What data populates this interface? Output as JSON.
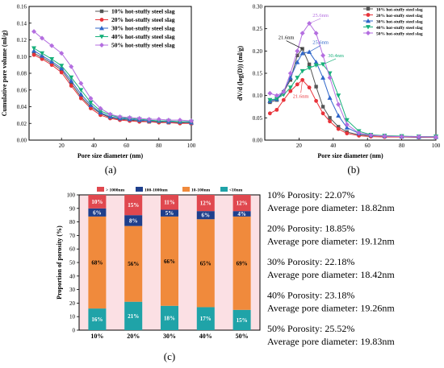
{
  "chart_data": [
    {
      "id": "a",
      "type": "line",
      "panel_label": "(a)",
      "xlabel": "Pore size diameter (nm)",
      "ylabel": "Cumulative pore volume (ml/g)",
      "xlim": [
        0,
        100
      ],
      "ylim": [
        0,
        0.16
      ],
      "xticks": [
        20,
        40,
        60,
        80,
        100
      ],
      "yticks": [
        0,
        0.02,
        0.04,
        0.06,
        0.08,
        0.1,
        0.12,
        0.14,
        0.16
      ],
      "ytick_labels": [
        "0.00",
        "0.02",
        "0.04",
        "0.06",
        "0.08",
        "0.10",
        "0.12",
        "0.14",
        "0.16"
      ],
      "legend_position": "top-right",
      "x": [
        3,
        8,
        14,
        20,
        26,
        32,
        38,
        44,
        50,
        56,
        62,
        68,
        74,
        80,
        86,
        93,
        100
      ],
      "series": [
        {
          "name": "10% hot-stuffy steel slag",
          "color": "#555555",
          "marker": "square",
          "values": [
            0.104,
            0.099,
            0.092,
            0.084,
            0.068,
            0.052,
            0.04,
            0.032,
            0.027,
            0.025,
            0.024,
            0.023,
            0.022,
            0.022,
            0.021,
            0.021,
            0.02
          ]
        },
        {
          "name": "20% hot-stuffy steel slag",
          "color": "#e8333a",
          "marker": "circle",
          "values": [
            0.102,
            0.097,
            0.09,
            0.081,
            0.065,
            0.05,
            0.038,
            0.03,
            0.026,
            0.024,
            0.023,
            0.022,
            0.022,
            0.021,
            0.021,
            0.02,
            0.02
          ]
        },
        {
          "name": "30% hot-stuffy steel slag",
          "color": "#2f66c9",
          "marker": "triangle-up",
          "values": [
            0.107,
            0.101,
            0.094,
            0.086,
            0.071,
            0.055,
            0.042,
            0.033,
            0.028,
            0.026,
            0.025,
            0.024,
            0.023,
            0.023,
            0.022,
            0.022,
            0.021
          ]
        },
        {
          "name": "40% hot-stuffy steel slag",
          "color": "#17b07a",
          "marker": "triangle-down",
          "values": [
            0.11,
            0.104,
            0.097,
            0.089,
            0.075,
            0.06,
            0.045,
            0.035,
            0.03,
            0.027,
            0.026,
            0.025,
            0.024,
            0.023,
            0.023,
            0.022,
            0.022
          ]
        },
        {
          "name": "50% hot-stuffy steel slag",
          "color": "#b46ee0",
          "marker": "diamond",
          "values": [
            0.13,
            0.122,
            0.113,
            0.104,
            0.088,
            0.068,
            0.05,
            0.038,
            0.031,
            0.028,
            0.027,
            0.026,
            0.025,
            0.025,
            0.024,
            0.024,
            0.023
          ]
        }
      ]
    },
    {
      "id": "b",
      "type": "line",
      "panel_label": "(b)",
      "xlabel": "Pore size diameter (nm)",
      "ylabel": "dV/d (log(D)) (ml/g)",
      "xlim": [
        0,
        100
      ],
      "ylim": [
        0,
        0.3
      ],
      "xticks": [
        20,
        40,
        60,
        80,
        100
      ],
      "yticks": [
        0,
        0.05,
        0.1,
        0.15,
        0.2,
        0.25,
        0.3
      ],
      "ytick_labels": [
        "0.00",
        "0.05",
        "0.10",
        "0.15",
        "0.20",
        "0.25",
        "0.30"
      ],
      "legend_position": "top-right",
      "x": [
        3,
        7,
        11,
        15,
        19,
        22,
        26,
        30,
        34,
        38,
        43,
        48,
        55,
        62,
        70,
        80,
        90,
        100
      ],
      "series": [
        {
          "name": "10% hot-stuffy steel slag",
          "color": "#555555",
          "marker": "square",
          "values": [
            0.085,
            0.09,
            0.108,
            0.135,
            0.19,
            0.205,
            0.17,
            0.12,
            0.075,
            0.05,
            0.03,
            0.018,
            0.012,
            0.01,
            0.009,
            0.008,
            0.007,
            0.007
          ]
        },
        {
          "name": "20% hot-stuffy steel slag",
          "color": "#e8333a",
          "marker": "circle",
          "values": [
            0.06,
            0.068,
            0.09,
            0.11,
            0.125,
            0.135,
            0.118,
            0.088,
            0.06,
            0.042,
            0.025,
            0.015,
            0.01,
            0.008,
            0.007,
            0.007,
            0.006,
            0.006
          ]
        },
        {
          "name": "30% hot-stuffy steel slag",
          "color": "#2f66c9",
          "marker": "triangle-up",
          "values": [
            0.088,
            0.092,
            0.11,
            0.14,
            0.175,
            0.195,
            0.198,
            0.175,
            0.14,
            0.095,
            0.055,
            0.028,
            0.015,
            0.011,
            0.009,
            0.008,
            0.007,
            0.007
          ]
        },
        {
          "name": "40% hot-stuffy steel slag",
          "color": "#17b07a",
          "marker": "triangle-down",
          "values": [
            0.09,
            0.093,
            0.102,
            0.118,
            0.14,
            0.155,
            0.162,
            0.168,
            0.17,
            0.15,
            0.1,
            0.045,
            0.02,
            0.012,
            0.01,
            0.009,
            0.008,
            0.008
          ]
        },
        {
          "name": "50% hot-stuffy steel slag",
          "color": "#b46ee0",
          "marker": "diamond",
          "values": [
            0.105,
            0.1,
            0.108,
            0.15,
            0.2,
            0.24,
            0.262,
            0.24,
            0.19,
            0.14,
            0.08,
            0.035,
            0.016,
            0.011,
            0.009,
            0.008,
            0.008,
            0.007
          ]
        }
      ],
      "annotations": [
        {
          "text": "21.6nm",
          "series": 0,
          "point": 5,
          "color": "#000000"
        },
        {
          "text": "21.6nm",
          "series": 1,
          "point": 5,
          "color": "#e8333a"
        },
        {
          "text": "25.6nm",
          "series": 2,
          "point": 6,
          "color": "#2f66c9"
        },
        {
          "text": "30.4nm",
          "series": 3,
          "point": 8,
          "color": "#17b07a"
        },
        {
          "text": "25.6nm",
          "series": 4,
          "point": 6,
          "color": "#b46ee0"
        }
      ]
    },
    {
      "id": "c",
      "type": "bar",
      "stacked": true,
      "panel_label": "(c)",
      "ylabel": "Proportion of porosity (%)",
      "ylim": [
        0,
        100
      ],
      "yticks": [
        0,
        10,
        20,
        30,
        40,
        50,
        60,
        70,
        80,
        90,
        100
      ],
      "categories": [
        "10%",
        "20%",
        "30%",
        "40%",
        "50%"
      ],
      "legend_position": "top",
      "series": [
        {
          "name": "<10nm",
          "color": "#1fa3a8",
          "values": [
            16,
            21,
            18,
            17,
            15
          ],
          "labels": [
            "16%",
            "21%",
            "18%",
            "17%",
            "15%"
          ]
        },
        {
          "name": "10-100nm",
          "color": "#f08a3c",
          "values": [
            68,
            56,
            66,
            65,
            69
          ],
          "labels": [
            "68%",
            "56%",
            "66%",
            "65%",
            "69%"
          ]
        },
        {
          "name": "100-1000nm",
          "color": "#1e3f8c",
          "values": [
            6,
            8,
            5,
            6,
            4
          ],
          "labels": [
            "6%",
            "8%",
            "5%",
            "6%",
            "4%"
          ]
        },
        {
          "name": "> 1000nm",
          "color": "#e0484f",
          "values": [
            10,
            15,
            11,
            12,
            12
          ],
          "labels": [
            "10%",
            "15%",
            "11%",
            "12%",
            "12%"
          ]
        }
      ]
    }
  ],
  "stats": [
    {
      "porosity": "10% Porosity: 22.07%",
      "avg": "Average pore diameter:  18.82nm"
    },
    {
      "porosity": "20% Porosity: 18.85%",
      "avg": "Average pore diameter: 19.12nm"
    },
    {
      "porosity": "30% Porosity: 22.18%",
      "avg": "Average pore diameter: 18.42nm"
    },
    {
      "porosity": "40% Porosity: 23.18%",
      "avg": "Average pore diameter: 19.26nm"
    },
    {
      "porosity": "50% Porosity: 25.52%",
      "avg": "Average pore diameter: 19.83nm"
    }
  ]
}
